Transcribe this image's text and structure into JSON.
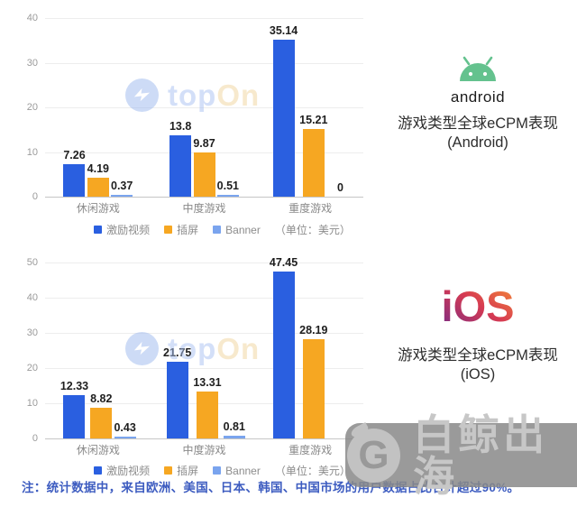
{
  "colors": {
    "rewarded_blue": "#2a5fe0",
    "interstitial_orange": "#f6a722",
    "banner_lightblue": "#7aa4ee",
    "footnote_blue": "#3d5cc0",
    "android_green": "#64c28e"
  },
  "chart_data": [
    {
      "type": "bar",
      "platform": "Android",
      "categories": [
        "休闲游戏",
        "中度游戏",
        "重度游戏"
      ],
      "series": [
        {
          "name": "激励视频",
          "color": "#2a5fe0",
          "values": [
            7.26,
            13.8,
            35.14
          ],
          "labels": [
            "7.26",
            "13.8",
            "35.14"
          ]
        },
        {
          "name": "插屏",
          "color": "#f6a722",
          "values": [
            4.19,
            9.87,
            15.21
          ],
          "labels": [
            "4.19",
            "9.87",
            "15.21"
          ]
        },
        {
          "name": "Banner",
          "color": "#7aa4ee",
          "values": [
            0.37,
            0.51,
            0
          ],
          "labels": [
            "0.37",
            "0.51",
            "0"
          ]
        }
      ],
      "ylim": [
        0,
        40
      ],
      "yticks": [
        0,
        10,
        20,
        30,
        40
      ],
      "legend_unit": "（单位：美元）",
      "grid": true,
      "legend_position": "bottom"
    },
    {
      "type": "bar",
      "platform": "iOS",
      "categories": [
        "休闲游戏",
        "中度游戏",
        "重度游戏"
      ],
      "series": [
        {
          "name": "激励视频",
          "color": "#2a5fe0",
          "values": [
            12.33,
            21.75,
            47.45
          ],
          "labels": [
            "12.33",
            "21.75",
            "47.45"
          ]
        },
        {
          "name": "插屏",
          "color": "#f6a722",
          "values": [
            8.82,
            13.31,
            28.19
          ],
          "labels": [
            "8.82",
            "13.31",
            "28.19"
          ]
        },
        {
          "name": "Banner",
          "color": "#7aa4ee",
          "values": [
            0.43,
            0.81,
            0
          ],
          "labels": [
            "0.43",
            "0.81",
            ""
          ]
        }
      ],
      "ylim": [
        0,
        50
      ],
      "yticks": [
        0,
        10,
        20,
        30,
        40,
        50
      ],
      "legend_unit": "（单位：美元）",
      "grid": true,
      "legend_position": "bottom"
    }
  ],
  "right_panel": {
    "android": {
      "wordmark": "android",
      "title": "游戏类型全球eCPM表现",
      "subtitle": "(Android)"
    },
    "ios": {
      "wordmark": "iOS",
      "title": "游戏类型全球eCPM表现",
      "subtitle": "(iOS)"
    }
  },
  "watermarks": {
    "topon": {
      "brand_top": "top",
      "brand_on": "On"
    },
    "brand": {
      "logo": "G",
      "label": "白鲸出海"
    }
  },
  "footnote": {
    "text": "注：统计数据中，来自欧洲、美国、日本、韩国、中国市场的用户数据占比合计超过90%。"
  }
}
